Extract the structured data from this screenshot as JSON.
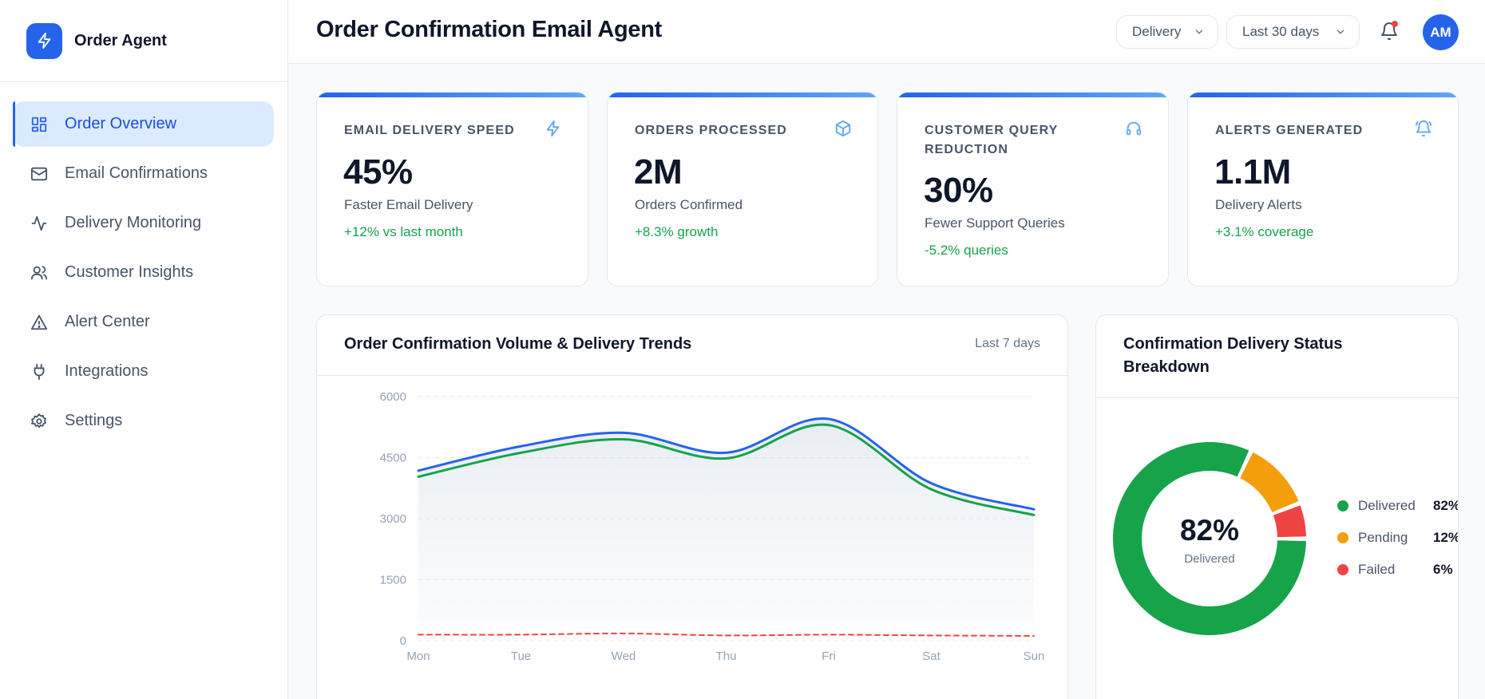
{
  "app": {
    "name": "Order Agent"
  },
  "nav": [
    {
      "label": "Order Overview",
      "icon": "layout-grid-icon",
      "active": true
    },
    {
      "label": "Email Confirmations",
      "icon": "mail-icon"
    },
    {
      "label": "Delivery Monitoring",
      "icon": "activity-icon"
    },
    {
      "label": "Customer Insights",
      "icon": "users-icon"
    },
    {
      "label": "Alert Center",
      "icon": "warning-triangle-icon"
    },
    {
      "label": "Integrations",
      "icon": "plug-icon"
    },
    {
      "label": "Settings",
      "icon": "gear-icon"
    }
  ],
  "header": {
    "title": "Order Confirmation Email Agent",
    "filter_category": "Delivery",
    "filter_range": "Last 30 days",
    "avatar_initials": "AM"
  },
  "stats": [
    {
      "label": "Email Delivery Speed",
      "value": "45%",
      "sub": "Faster Email Delivery",
      "change": "+12% vs last month",
      "icon": "lightning-icon"
    },
    {
      "label": "Orders Processed",
      "value": "2M",
      "sub": "Orders Confirmed",
      "change": "+8.3% growth",
      "icon": "package-icon"
    },
    {
      "label": "Customer Query Reduction",
      "value": "30%",
      "sub": "Fewer Support Queries",
      "change": "-5.2% queries",
      "icon": "headphones-icon"
    },
    {
      "label": "Alerts Generated",
      "value": "1.1M",
      "sub": "Delivery Alerts",
      "change": "+3.1% coverage",
      "icon": "bell-ring-icon"
    }
  ],
  "trend_panel": {
    "title": "Order Confirmation Volume & Delivery Trends",
    "range": "Last 7 days"
  },
  "status_panel": {
    "title": "Confirmation Delivery Status Breakdown",
    "center_value": "82%",
    "center_label": "Delivered"
  },
  "colors": {
    "accent": "#2563eb",
    "sent": "#2563eb",
    "delivered": "#16a34a",
    "pending": "#f59e0b",
    "failed": "#ef4444"
  },
  "chart_data": [
    {
      "type": "line",
      "x": [
        "Mon",
        "Tue",
        "Wed",
        "Thu",
        "Fri",
        "Sat",
        "Sun"
      ],
      "ylim": [
        0,
        6000
      ],
      "yticks": [
        0,
        1500,
        3000,
        4500,
        6000
      ],
      "grid": true,
      "series": [
        {
          "values": [
            4180,
            4780,
            5110,
            4620,
            5450,
            3870,
            3230
          ],
          "color": "#2563eb"
        },
        {
          "values": [
            4030,
            4620,
            4950,
            4480,
            5300,
            3720,
            3090
          ],
          "color": "#16a34a"
        },
        {
          "values": [
            150,
            150,
            180,
            130,
            150,
            130,
            120
          ],
          "color": "#ef4444"
        }
      ]
    },
    {
      "type": "pie",
      "categories": [
        "Delivered",
        "Pending",
        "Failed"
      ],
      "values": [
        82,
        12,
        6
      ],
      "labels": [
        "82%",
        "12%",
        "6%"
      ],
      "colors": [
        "#16a34a",
        "#f59e0b",
        "#ef4444"
      ]
    }
  ]
}
